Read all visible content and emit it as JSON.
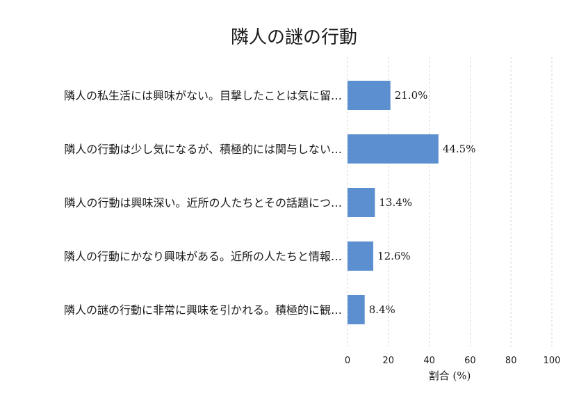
{
  "chart_data": {
    "type": "bar",
    "orientation": "horizontal",
    "title": "隣人の謎の行動",
    "xlabel": "割合 (%)",
    "ylabel": "",
    "xlim": [
      0,
      100
    ],
    "xticks": [
      0,
      20,
      40,
      60,
      80,
      100
    ],
    "grid": "vertical dashed",
    "legend": "none",
    "bar_color": "#5b8fd0",
    "categories": [
      "隣人の私生活には興味がない。目撃したことは気に留…",
      "隣人の行動は少し気になるが、積極的には関与しない…",
      "隣人の行動は興味深い。近所の人たちとその話題につ…",
      "隣人の行動にかなり興味がある。近所の人たちと情報…",
      "隣人の謎の行動に非常に興味を引かれる。積極的に観…"
    ],
    "values": [
      21.0,
      44.5,
      13.4,
      12.6,
      8.4
    ],
    "value_labels": [
      "21.0%",
      "44.5%",
      "13.4%",
      "12.6%",
      "8.4%"
    ]
  }
}
